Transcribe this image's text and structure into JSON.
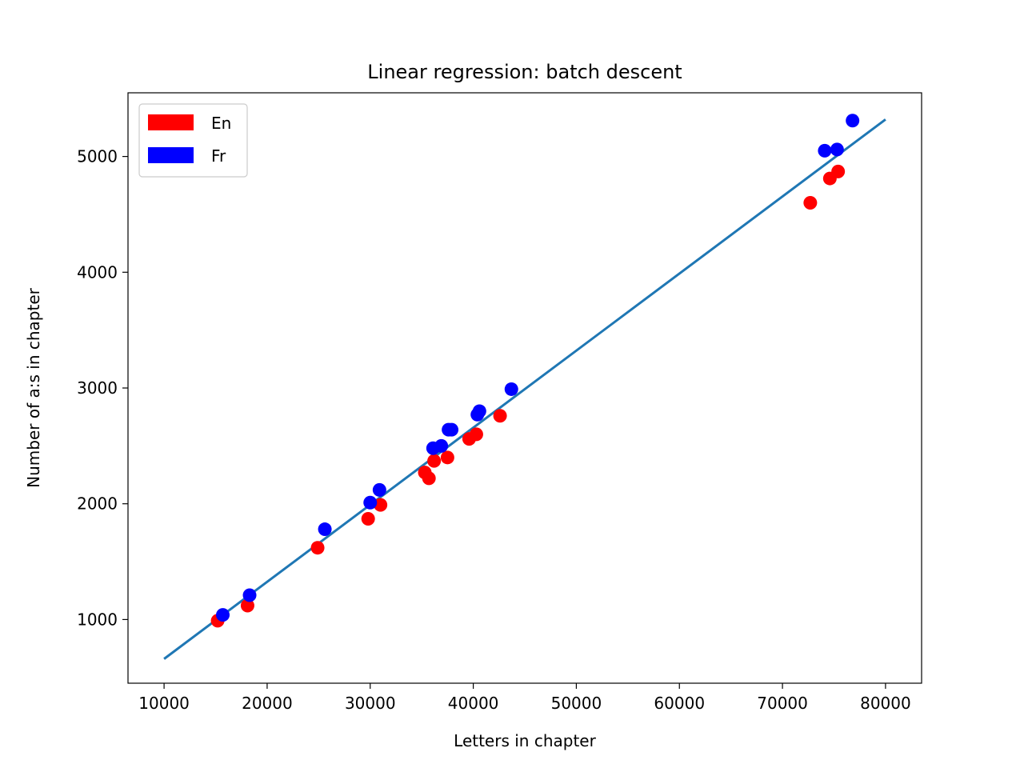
{
  "chart_data": {
    "type": "scatter",
    "title": "Linear regression: batch descent",
    "xlabel": "Letters in chapter",
    "ylabel": "Number of a:s in chapter",
    "xlim": [
      6500,
      83500
    ],
    "ylim": [
      450,
      5550
    ],
    "xticks": [
      10000,
      20000,
      30000,
      40000,
      50000,
      60000,
      70000,
      80000
    ],
    "yticks": [
      1000,
      2000,
      3000,
      4000,
      5000
    ],
    "xtick_labels": [
      "10000",
      "20000",
      "30000",
      "40000",
      "50000",
      "60000",
      "70000",
      "80000"
    ],
    "ytick_labels": [
      "1000",
      "2000",
      "3000",
      "4000",
      "5000"
    ],
    "grid": false,
    "legend_position": "top-left",
    "legend": [
      {
        "label": "En",
        "color": "#ff0000"
      },
      {
        "label": "Fr",
        "color": "#0000ff"
      }
    ],
    "series": [
      {
        "name": "En",
        "color": "#ff0000",
        "points": [
          [
            15200,
            990
          ],
          [
            18100,
            1120
          ],
          [
            24900,
            1620
          ],
          [
            29800,
            1870
          ],
          [
            31000,
            1990
          ],
          [
            35300,
            2270
          ],
          [
            35700,
            2220
          ],
          [
            36200,
            2370
          ],
          [
            37500,
            2400
          ],
          [
            39600,
            2560
          ],
          [
            40300,
            2600
          ],
          [
            42600,
            2760
          ],
          [
            72700,
            4600
          ],
          [
            74600,
            4810
          ],
          [
            75400,
            4870
          ]
        ]
      },
      {
        "name": "Fr",
        "color": "#0000ff",
        "points": [
          [
            15700,
            1040
          ],
          [
            18300,
            1210
          ],
          [
            25600,
            1780
          ],
          [
            30000,
            2010
          ],
          [
            30900,
            2120
          ],
          [
            36100,
            2480
          ],
          [
            36900,
            2500
          ],
          [
            37600,
            2640
          ],
          [
            37900,
            2640
          ],
          [
            40400,
            2770
          ],
          [
            40600,
            2800
          ],
          [
            43700,
            2990
          ],
          [
            74100,
            5050
          ],
          [
            75300,
            5060
          ],
          [
            76800,
            5310
          ]
        ]
      }
    ],
    "fit_line": {
      "color": "#1f77b4",
      "points": [
        [
          10000,
          660
        ],
        [
          80000,
          5320
        ]
      ]
    }
  }
}
